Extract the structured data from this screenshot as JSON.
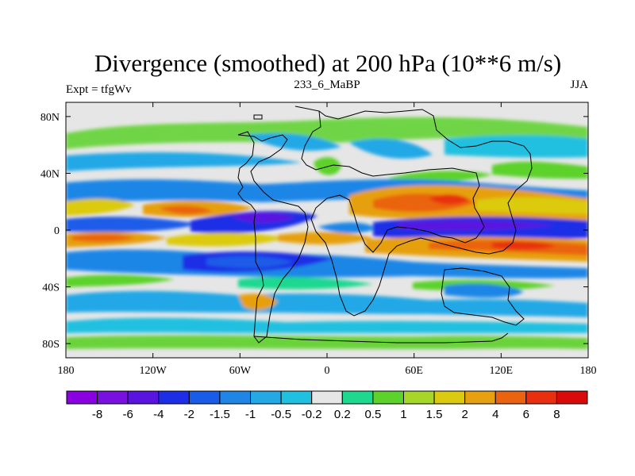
{
  "map": {
    "title": "Divergence (smoothed) at 200 hPa (10**6 m/s)",
    "left_label": "Expt = tfgWv",
    "center_label": "233_6_MaBP",
    "right_label": "JJA",
    "lon_ticks": [
      "180",
      "120W",
      "60W",
      "0",
      "60E",
      "120E",
      "180"
    ],
    "lat_ticks": [
      "80N",
      "40N",
      "0",
      "40S",
      "80S"
    ],
    "lon_values": [
      -180,
      -120,
      -60,
      0,
      60,
      120,
      180
    ],
    "lat_values": [
      80,
      40,
      0,
      -40,
      -80
    ]
  },
  "colorbar": {
    "labels": [
      "-8",
      "-6",
      "-4",
      "-2",
      "-1.5",
      "-1",
      "-0.5",
      "-0.2",
      "0.2",
      "0.5",
      "1",
      "1.5",
      "2",
      "4",
      "6",
      "8"
    ],
    "colors": [
      "#8a00e0",
      "#7a10e0",
      "#5a14e0",
      "#1c2ee6",
      "#1a5ce8",
      "#1f86e6",
      "#24a8e6",
      "#20c0e0",
      "#e6e6e6",
      "#1ed890",
      "#5cd22a",
      "#a6d628",
      "#dcca10",
      "#e6a010",
      "#ea6410",
      "#e83010",
      "#d80a0a"
    ]
  }
}
